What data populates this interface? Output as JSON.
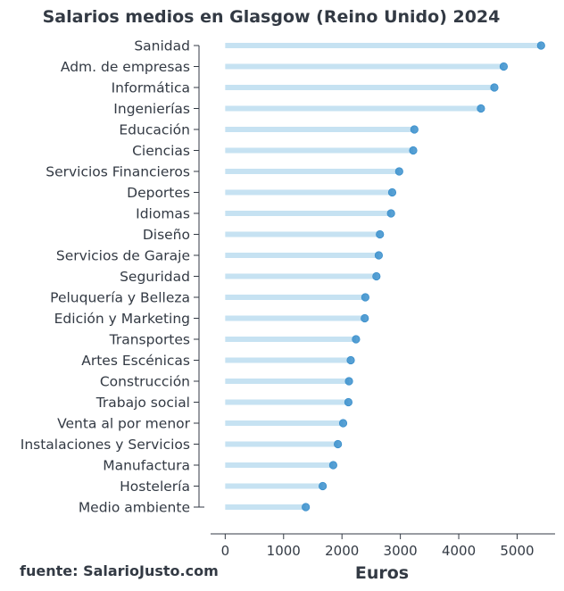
{
  "chart_data": {
    "type": "lollipop",
    "title": "Salarios medios en Glasgow (Reino Unido) 2024",
    "xlabel": "Euros",
    "ylabel": "",
    "source": "fuente: SalarioJusto.com",
    "xlim": [
      -250,
      5650
    ],
    "xticks": [
      0,
      1000,
      2000,
      3000,
      4000,
      5000
    ],
    "grid": false,
    "stem_color": "#c6e2f2",
    "dot_color": "#3a8fcc",
    "categories": [
      "Sanidad",
      "Adm. de empresas",
      "Informática",
      "Ingenierías",
      "Educación",
      "Ciencias",
      "Servicios Financieros",
      "Deportes",
      "Idiomas",
      "Diseño",
      "Servicios de Garaje",
      "Seguridad",
      "Peluquería y Belleza",
      "Edición y Marketing",
      "Transportes",
      "Artes Escénicas",
      "Construcción",
      "Trabajo social",
      "Venta al por menor",
      "Instalaciones y Servicios",
      "Manufactura",
      "Hostelería",
      "Medio ambiente"
    ],
    "values": [
      5410,
      4770,
      4610,
      4380,
      3240,
      3220,
      2980,
      2860,
      2840,
      2650,
      2630,
      2590,
      2400,
      2390,
      2240,
      2150,
      2120,
      2110,
      2020,
      1930,
      1850,
      1670,
      1380
    ]
  }
}
